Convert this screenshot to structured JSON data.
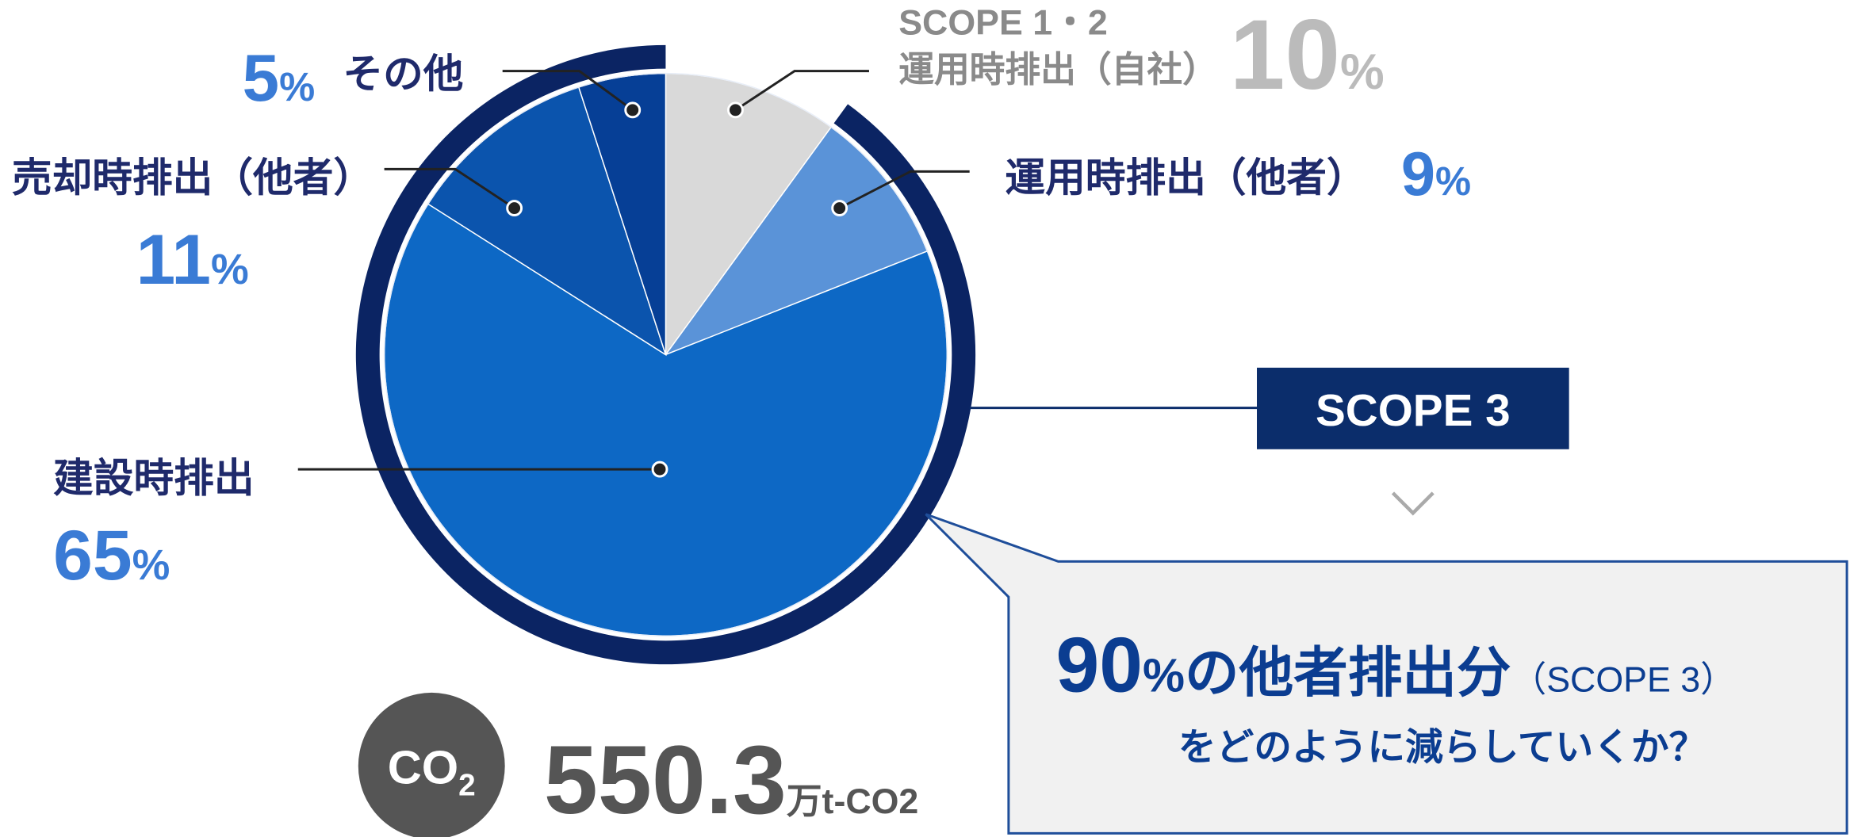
{
  "chart_data": {
    "type": "pie",
    "categories": [
      "SCOPE 1・2\n運用時排出（自社）",
      "運用時排出（他者）",
      "建設時排出",
      "売却時排出（他者）",
      "その他"
    ],
    "values": [
      10,
      9,
      65,
      11,
      5
    ],
    "colors": [
      "#d9d9d9",
      "#5a93d8",
      "#0d68c5",
      "#0b54ad",
      "#063f96"
    ],
    "unit": "%",
    "group_label": "SCOPE 3",
    "callout": {
      "number": 90,
      "unit": "%",
      "text": "の他者排出分",
      "note": "（SCOPE 3）",
      "line2": "をどのように減らしていくか？"
    },
    "total": {
      "badge": "CO",
      "badge_sub": "2",
      "value": 550.3,
      "unit": "万t-CO2"
    }
  }
}
